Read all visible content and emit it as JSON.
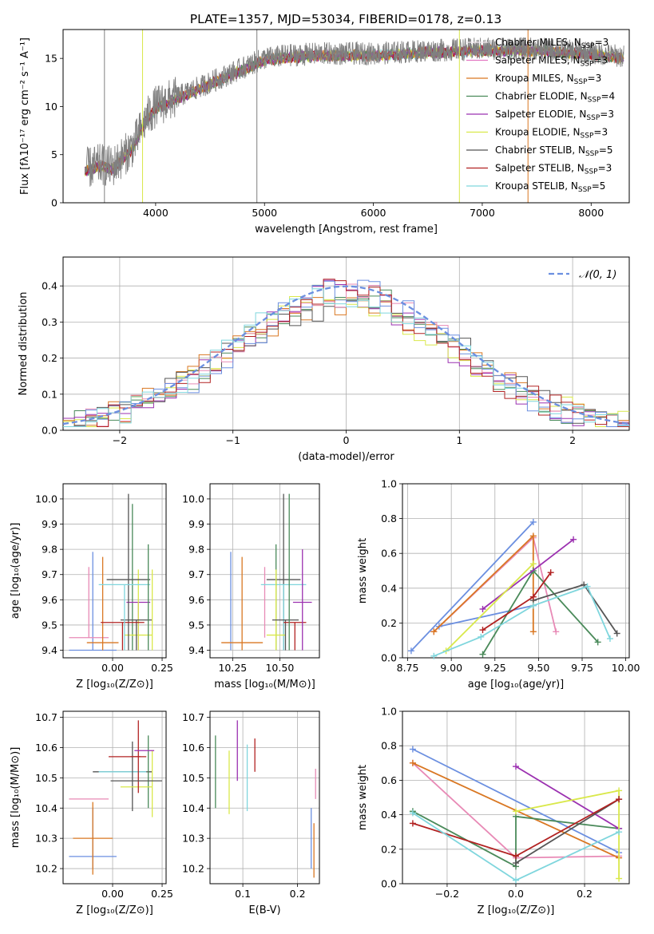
{
  "figure": {
    "title": "PLATE=1357, MJD=53034, FIBERID=0178, z=0.13"
  },
  "legend_entries": [
    {
      "label": "Chabrier MILES, N",
      "sub": "SSP",
      "suffix": "=3",
      "color": "#f0e6ec"
    },
    {
      "label": "Salpeter MILES, N",
      "sub": "SSP",
      "suffix": "=3",
      "color": "#e377c2"
    },
    {
      "label": "Kroupa MILES, N",
      "sub": "SSP",
      "suffix": "=3",
      "color": "#d97722"
    },
    {
      "label": "Chabrier ELODIE, N",
      "sub": "SSP",
      "suffix": "=4",
      "color": "#4a8a5a"
    },
    {
      "label": "Salpeter ELODIE, N",
      "sub": "SSP",
      "suffix": "=3",
      "color": "#9b30b0"
    },
    {
      "label": "Kroupa ELODIE, N",
      "sub": "SSP",
      "suffix": "=3",
      "color": "#d9e84a"
    },
    {
      "label": "Chabrier STELIB, N",
      "sub": "SSP",
      "suffix": "=5",
      "color": "#555555"
    },
    {
      "label": "Salpeter STELIB, N",
      "sub": "SSP",
      "suffix": "=3",
      "color": "#b22222"
    },
    {
      "label": "Kroupa STELIB, N",
      "sub": "SSP",
      "suffix": "=5",
      "color": "#7fd6dd"
    }
  ],
  "series_colors": [
    "#6b8fe0",
    "#e88ab6",
    "#d97722",
    "#4a8a5a",
    "#9b30b0",
    "#d9e84a",
    "#555555",
    "#b22222",
    "#7fd6dd"
  ],
  "chart_data": [
    {
      "type": "line",
      "id": "spectrum",
      "xlabel": "wavelength [Angstrom, rest frame]",
      "ylabel": "Flux [fλ10⁻¹⁷ erg cm⁻² s⁻¹ A⁻¹]",
      "xlim": [
        3150,
        8350
      ],
      "ylim": [
        0,
        18
      ],
      "xticks": [
        4000,
        5000,
        6000,
        7000,
        8000
      ],
      "yticks": [
        0,
        5,
        10,
        15
      ],
      "data_color": "#808080",
      "data_envelope": {
        "x": [
          3350,
          3500,
          3600,
          3700,
          3800,
          3900,
          4000,
          4200,
          4500,
          4800,
          5000,
          5200,
          5500,
          6000,
          6500,
          7000,
          7500,
          8000,
          8300
        ],
        "y": [
          3.5,
          4.0,
          3.7,
          4.8,
          6.0,
          8.5,
          10.0,
          11.0,
          12.5,
          14.0,
          15.0,
          15.3,
          15.5,
          15.5,
          15.8,
          16.0,
          16.0,
          15.6,
          15.2
        ]
      },
      "vertical_lines": [
        {
          "x": 3530,
          "color": "#808080"
        },
        {
          "x": 4930,
          "color": "#808080"
        },
        {
          "x": 3880,
          "color": "#d9e84a"
        },
        {
          "x": 6790,
          "color": "#d9e84a"
        },
        {
          "x": 7420,
          "color": "#d97722"
        }
      ],
      "legend_position": "upper right",
      "grid": false
    },
    {
      "type": "histogram",
      "id": "residuals",
      "xlabel": "(data-model)/error",
      "ylabel": "Normed distribution",
      "xlim": [
        -2.5,
        2.5
      ],
      "ylim": [
        0,
        0.48
      ],
      "xticks": [
        -2,
        -1,
        0,
        1,
        2
      ],
      "yticks": [
        0.0,
        0.1,
        0.2,
        0.3,
        0.4
      ],
      "bin_width": 0.1,
      "reference_curve": {
        "label": "𝒩(0, 1)",
        "type": "gaussian",
        "mean": 0,
        "sigma": 1,
        "color": "#6b8fe0"
      },
      "legend_position": "upper right",
      "grid": true
    },
    {
      "type": "scatter",
      "id": "age-vs-Z",
      "xlabel": "Z [log₁₀(Z/Z⊙)]",
      "ylabel": "age  [log₁₀(age/yr)]",
      "xlim": [
        -0.25,
        0.27
      ],
      "ylim": [
        9.37,
        10.06
      ],
      "xticks": [
        0.0,
        0.25
      ],
      "yticks": [
        9.4,
        9.5,
        9.6,
        9.7,
        9.8,
        9.9,
        10.0
      ],
      "grid": true,
      "points": [
        {
          "series": 0,
          "x": -0.1,
          "xerr": 0.0,
          "y": 9.59,
          "yerr_lo": 0.19,
          "yerr_hi": 0.2
        },
        {
          "series": 0,
          "x": -0.1,
          "xerr": 0.12,
          "y": 9.4,
          "yerr_lo": 0.0,
          "yerr_hi": 0.0
        },
        {
          "series": 1,
          "x": -0.12,
          "xerr": 0.1,
          "y": 9.45,
          "yerr_lo": 0.0,
          "yerr_hi": 0.28
        },
        {
          "series": 2,
          "x": -0.05,
          "xerr": 0.08,
          "y": 9.43,
          "yerr_lo": 0.03,
          "yerr_hi": 0.34
        },
        {
          "series": 3,
          "x": 0.1,
          "xerr": 0.0,
          "y": 9.7,
          "yerr_lo": 0.3,
          "yerr_hi": 0.28
        },
        {
          "series": 4,
          "x": 0.13,
          "xerr": 0.06,
          "y": 9.59,
          "yerr_lo": 0.19,
          "yerr_hi": 0.0
        },
        {
          "series": 5,
          "x": 0.13,
          "xerr": 0.07,
          "y": 9.46,
          "yerr_lo": 0.06,
          "yerr_hi": 0.26
        },
        {
          "series": 6,
          "x": 0.08,
          "xerr": 0.11,
          "y": 9.68,
          "yerr_lo": 0.28,
          "yerr_hi": 0.34
        },
        {
          "series": 6,
          "x": 0.12,
          "xerr": 0.08,
          "y": 9.52,
          "yerr_lo": 0.12,
          "yerr_hi": 0.0
        },
        {
          "series": 7,
          "x": 0.05,
          "xerr": 0.11,
          "y": 9.51,
          "yerr_lo": 0.11,
          "yerr_hi": 0.0
        },
        {
          "series": 8,
          "x": 0.06,
          "xerr": 0.13,
          "y": 9.66,
          "yerr_lo": 0.26,
          "yerr_hi": 0.0
        },
        {
          "series": 3,
          "x": 0.18,
          "xerr": 0.0,
          "y": 9.62,
          "yerr_lo": 0.22,
          "yerr_hi": 0.2
        },
        {
          "series": 5,
          "x": 0.2,
          "xerr": 0.0,
          "y": 9.55,
          "yerr_lo": 0.15,
          "yerr_hi": 0.17
        }
      ]
    },
    {
      "type": "scatter",
      "id": "age-vs-mass",
      "xlabel": "mass [log₁₀(M/M⊙)]",
      "ylabel": "",
      "xlim": [
        10.13,
        10.71
      ],
      "ylim": [
        9.37,
        10.06
      ],
      "xticks": [
        10.25,
        10.5
      ],
      "yticks": [
        9.4,
        9.5,
        9.6,
        9.7,
        9.8,
        9.9,
        10.0
      ],
      "grid": true,
      "points": [
        {
          "series": 0,
          "x": 10.24,
          "xerr": 0.0,
          "y": 9.59,
          "yerr_lo": 0.19,
          "yerr_hi": 0.2
        },
        {
          "series": 2,
          "x": 10.3,
          "xerr": 0.11,
          "y": 9.43,
          "yerr_lo": 0.03,
          "yerr_hi": 0.34
        },
        {
          "series": 1,
          "x": 10.42,
          "xerr": 0.0,
          "y": 9.45,
          "yerr_lo": 0.0,
          "yerr_hi": 0.28
        },
        {
          "series": 6,
          "x": 10.52,
          "xerr": 0.09,
          "y": 9.68,
          "yerr_lo": 0.28,
          "yerr_hi": 0.34
        },
        {
          "series": 8,
          "x": 10.52,
          "xerr": 0.12,
          "y": 9.66,
          "yerr_lo": 0.26,
          "yerr_hi": 0.0
        },
        {
          "series": 3,
          "x": 10.48,
          "xerr": 0.0,
          "y": 9.62,
          "yerr_lo": 0.22,
          "yerr_hi": 0.2
        },
        {
          "series": 5,
          "x": 10.48,
          "xerr": 0.05,
          "y": 9.46,
          "yerr_lo": 0.06,
          "yerr_hi": 0.26
        },
        {
          "series": 6,
          "x": 10.53,
          "xerr": 0.07,
          "y": 9.52,
          "yerr_lo": 0.12,
          "yerr_hi": 0.0
        },
        {
          "series": 7,
          "x": 10.58,
          "xerr": 0.06,
          "y": 9.51,
          "yerr_lo": 0.11,
          "yerr_hi": 0.0
        },
        {
          "series": 4,
          "x": 10.62,
          "xerr": 0.05,
          "y": 9.59,
          "yerr_lo": 0.19,
          "yerr_hi": 0.21
        },
        {
          "series": 3,
          "x": 10.55,
          "xerr": 0.0,
          "y": 9.7,
          "yerr_lo": 0.3,
          "yerr_hi": 0.32
        }
      ]
    },
    {
      "type": "line",
      "id": "mass-weight-vs-age",
      "xlabel": "age  [log₁₀(age/yr)]",
      "ylabel": "mass weight",
      "xlim": [
        8.72,
        10.02
      ],
      "ylim": [
        0,
        1
      ],
      "xticks": [
        8.75,
        9.0,
        9.25,
        9.5,
        9.75,
        10.0
      ],
      "yticks": [
        0.0,
        0.2,
        0.4,
        0.6,
        0.8,
        1.0
      ],
      "grid": true,
      "series": [
        {
          "color_index": 0,
          "x": [
            8.77,
            9.47
          ],
          "y": [
            0.04,
            0.78
          ]
        },
        {
          "color_index": 0,
          "x": [
            8.93,
            9.47
          ],
          "y": [
            0.18,
            0.3
          ]
        },
        {
          "color_index": 1,
          "x": [
            8.9,
            9.47,
            9.6
          ],
          "y": [
            0.15,
            0.69,
            0.15
          ]
        },
        {
          "color_index": 2,
          "x": [
            8.9,
            9.47,
            9.47
          ],
          "y": [
            0.15,
            0.7,
            0.15
          ]
        },
        {
          "color_index": 3,
          "x": [
            9.18,
            9.47,
            9.84
          ],
          "y": [
            0.02,
            0.5,
            0.09
          ]
        },
        {
          "color_index": 4,
          "x": [
            9.18,
            9.7
          ],
          "y": [
            0.28,
            0.68
          ]
        },
        {
          "color_index": 5,
          "x": [
            8.97,
            9.47
          ],
          "y": [
            0.04,
            0.54
          ]
        },
        {
          "color_index": 6,
          "x": [
            9.47,
            9.76,
            9.95
          ],
          "y": [
            0.33,
            0.42,
            0.14
          ]
        },
        {
          "color_index": 7,
          "x": [
            9.18,
            9.47,
            9.57
          ],
          "y": [
            0.16,
            0.35,
            0.49
          ]
        },
        {
          "color_index": 8,
          "x": [
            8.9,
            9.17,
            9.47,
            9.78,
            9.91
          ],
          "y": [
            0.01,
            0.12,
            0.3,
            0.41,
            0.11
          ]
        }
      ]
    },
    {
      "type": "scatter",
      "id": "mass-vs-Z",
      "xlabel": "Z [log₁₀(Z/Z⊙)]",
      "ylabel": "mass [log₁₀(M/M⊙)]",
      "xlim": [
        -0.25,
        0.27
      ],
      "ylim": [
        10.15,
        10.72
      ],
      "xticks": [
        0.0,
        0.25
      ],
      "yticks": [
        10.2,
        10.3,
        10.4,
        10.5,
        10.6,
        10.7
      ],
      "grid": true,
      "points": [
        {
          "series": 0,
          "x": -0.1,
          "xerr": 0.12,
          "y": 10.24,
          "yerr_lo": 0.04,
          "yerr_hi": 0.16
        },
        {
          "series": 2,
          "x": -0.1,
          "xerr": 0.1,
          "y": 10.3,
          "yerr_lo": 0.12,
          "yerr_hi": 0.12
        },
        {
          "series": 1,
          "x": -0.12,
          "xerr": 0.1,
          "y": 10.43,
          "yerr_lo": 0.0,
          "yerr_hi": 0.0
        },
        {
          "series": 6,
          "x": 0.05,
          "xerr": 0.15,
          "y": 10.52,
          "yerr_lo": 0.0,
          "yerr_hi": 0.0
        },
        {
          "series": 8,
          "x": 0.05,
          "xerr": 0.12,
          "y": 10.52,
          "yerr_lo": 0.0,
          "yerr_hi": 0.0
        },
        {
          "series": 6,
          "x": 0.1,
          "xerr": 0.0,
          "y": 10.52,
          "yerr_lo": 0.13,
          "yerr_hi": 0.1
        },
        {
          "series": 3,
          "x": 0.18,
          "xerr": 0.0,
          "y": 10.52,
          "yerr_lo": 0.12,
          "yerr_hi": 0.12
        },
        {
          "series": 5,
          "x": 0.2,
          "xerr": 0.0,
          "y": 10.47,
          "yerr_lo": 0.1,
          "yerr_hi": 0.12
        },
        {
          "series": 5,
          "x": 0.12,
          "xerr": 0.08,
          "y": 10.47,
          "yerr_lo": 0.0,
          "yerr_hi": 0.0
        },
        {
          "series": 7,
          "x": 0.13,
          "xerr": 0.04,
          "y": 10.57,
          "yerr_lo": 0.12,
          "yerr_hi": 0.12
        },
        {
          "series": 7,
          "x": 0.06,
          "xerr": 0.08,
          "y": 10.57,
          "yerr_lo": 0.0,
          "yerr_hi": 0.0
        },
        {
          "series": 4,
          "x": 0.16,
          "xerr": 0.05,
          "y": 10.59,
          "yerr_lo": 0.0,
          "yerr_hi": 0.0
        },
        {
          "series": 6,
          "x": 0.12,
          "xerr": 0.13,
          "y": 10.49,
          "yerr_lo": 0.0,
          "yerr_hi": 0.0
        }
      ]
    },
    {
      "type": "scatter",
      "id": "mass-vs-EBV",
      "xlabel": "E(B-V)",
      "ylabel": "",
      "xlim": [
        0.04,
        0.24
      ],
      "ylim": [
        10.15,
        10.72
      ],
      "xticks": [
        0.0,
        0.1,
        0.2
      ],
      "yticks": [
        10.2,
        10.3,
        10.4,
        10.5,
        10.6,
        10.7
      ],
      "grid": true,
      "points": [
        {
          "series": 3,
          "x": 0.05,
          "xerr": 0.0,
          "y": 10.52,
          "yerr_lo": 0.12,
          "yerr_hi": 0.12
        },
        {
          "series": 5,
          "x": 0.075,
          "xerr": 0.0,
          "y": 10.48,
          "yerr_lo": 0.1,
          "yerr_hi": 0.11
        },
        {
          "series": 4,
          "x": 0.09,
          "xerr": 0.0,
          "y": 10.59,
          "yerr_lo": 0.1,
          "yerr_hi": 0.1
        },
        {
          "series": 8,
          "x": 0.108,
          "xerr": 0.0,
          "y": 10.5,
          "yerr_lo": 0.11,
          "yerr_hi": 0.11
        },
        {
          "series": 7,
          "x": 0.122,
          "xerr": 0.0,
          "y": 10.57,
          "yerr_lo": 0.05,
          "yerr_hi": 0.06
        },
        {
          "series": 0,
          "x": 0.225,
          "xerr": 0.0,
          "y": 10.3,
          "yerr_lo": 0.1,
          "yerr_hi": 0.1
        },
        {
          "series": 2,
          "x": 0.23,
          "xerr": 0.0,
          "y": 10.25,
          "yerr_lo": 0.08,
          "yerr_hi": 0.1
        },
        {
          "series": 1,
          "x": 0.233,
          "xerr": 0.0,
          "y": 10.43,
          "yerr_lo": 0.0,
          "yerr_hi": 0.1
        }
      ]
    },
    {
      "type": "line",
      "id": "mass-weight-vs-Z",
      "xlabel": "Z [log₁₀(Z/Z⊙)]",
      "ylabel": "mass weight",
      "xlim": [
        -0.33,
        0.33
      ],
      "ylim": [
        0,
        1
      ],
      "xticks": [
        -0.2,
        0.0,
        0.2
      ],
      "yticks": [
        0.0,
        0.2,
        0.4,
        0.6,
        0.8,
        1.0
      ],
      "grid": true,
      "series": [
        {
          "color_index": 0,
          "x": [
            -0.3,
            0.3
          ],
          "y": [
            0.78,
            0.18
          ]
        },
        {
          "color_index": 1,
          "x": [
            -0.3,
            0.0,
            0.3
          ],
          "y": [
            0.7,
            0.15,
            0.16
          ]
        },
        {
          "color_index": 2,
          "x": [
            -0.3,
            0.3
          ],
          "y": [
            0.7,
            0.15
          ]
        },
        {
          "color_index": 3,
          "x": [
            -0.3,
            0.0,
            0.0,
            0.3
          ],
          "y": [
            0.42,
            0.1,
            0.39,
            0.32
          ]
        },
        {
          "color_index": 4,
          "x": [
            0.0,
            0.3
          ],
          "y": [
            0.68,
            0.32
          ]
        },
        {
          "color_index": 5,
          "x": [
            0.0,
            0.3,
            0.3
          ],
          "y": [
            0.42,
            0.54,
            0.03
          ]
        },
        {
          "color_index": 6,
          "x": [
            0.0,
            0.3
          ],
          "y": [
            0.12,
            0.49
          ]
        },
        {
          "color_index": 7,
          "x": [
            -0.3,
            0.0,
            0.3
          ],
          "y": [
            0.35,
            0.16,
            0.49
          ]
        },
        {
          "color_index": 8,
          "x": [
            -0.3,
            0.0,
            0.3
          ],
          "y": [
            0.41,
            0.02,
            0.3
          ]
        }
      ]
    }
  ]
}
